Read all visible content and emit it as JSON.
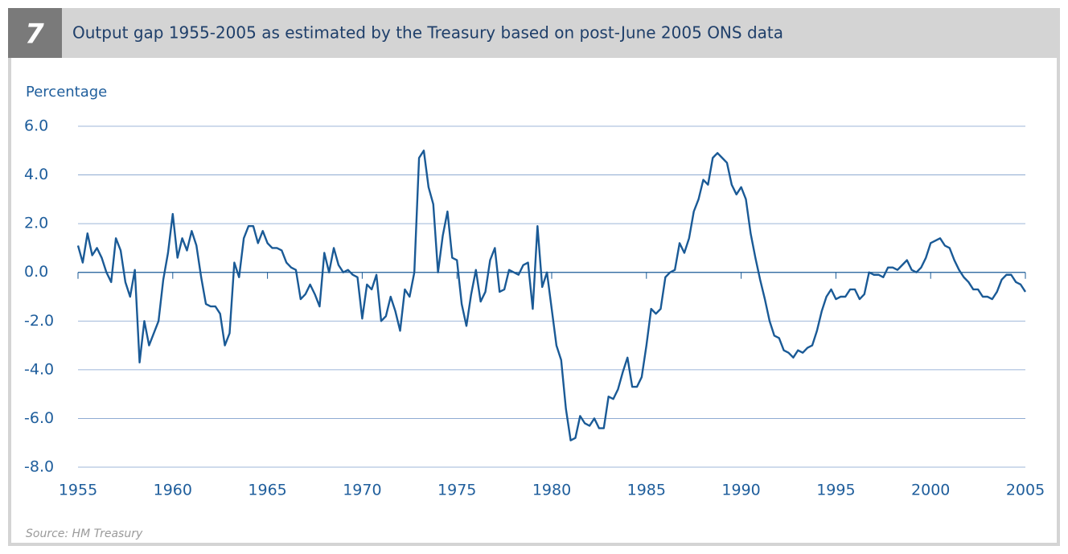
{
  "chart_data": {
    "type": "line",
    "badge": "7",
    "title": "Output gap 1955-2005 as estimated by the Treasury based on post-June 2005 ONS data",
    "y_label": "Percentage",
    "source": "Source: HM Treasury",
    "xlim": [
      1955,
      2005
    ],
    "xticks": [
      1955,
      1960,
      1965,
      1970,
      1975,
      1980,
      1985,
      1990,
      1995,
      2000,
      2005
    ],
    "ylim": [
      -8,
      6
    ],
    "yticks": [
      {
        "value": 6,
        "label": "6.0"
      },
      {
        "value": 4,
        "label": "4.0"
      },
      {
        "value": 2,
        "label": "2.0"
      },
      {
        "value": 0,
        "label": "0.0"
      },
      {
        "value": -2,
        "label": "-2.0"
      },
      {
        "value": -4,
        "label": "-4.0"
      },
      {
        "value": -6,
        "label": "-6.0"
      },
      {
        "value": -8,
        "label": "-8.0"
      }
    ],
    "grid": true,
    "x": [
      1955,
      1955.25,
      1955.5,
      1955.75,
      1956,
      1956.25,
      1956.5,
      1956.75,
      1957,
      1957.25,
      1957.5,
      1957.75,
      1958,
      1958.25,
      1958.5,
      1958.75,
      1959,
      1959.25,
      1959.5,
      1959.75,
      1960,
      1960.25,
      1960.5,
      1960.75,
      1961,
      1961.25,
      1961.5,
      1961.75,
      1962,
      1962.25,
      1962.5,
      1962.75,
      1963,
      1963.25,
      1963.5,
      1963.75,
      1964,
      1964.25,
      1964.5,
      1964.75,
      1965,
      1965.25,
      1965.5,
      1965.75,
      1966,
      1966.25,
      1966.5,
      1966.75,
      1967,
      1967.25,
      1967.5,
      1967.75,
      1968,
      1968.25,
      1968.5,
      1968.75,
      1969,
      1969.25,
      1969.5,
      1969.75,
      1970,
      1970.25,
      1970.5,
      1970.75,
      1971,
      1971.25,
      1971.5,
      1971.75,
      1972,
      1972.25,
      1972.5,
      1972.75,
      1973,
      1973.25,
      1973.5,
      1973.75,
      1974,
      1974.25,
      1974.5,
      1974.75,
      1975,
      1975.25,
      1975.5,
      1975.75,
      1976,
      1976.25,
      1976.5,
      1976.75,
      1977,
      1977.25,
      1977.5,
      1977.75,
      1978,
      1978.25,
      1978.5,
      1978.75,
      1979,
      1979.25,
      1979.5,
      1979.75,
      1980,
      1980.25,
      1980.5,
      1980.75,
      1981,
      1981.25,
      1981.5,
      1981.75,
      1982,
      1982.25,
      1982.5,
      1982.75,
      1983,
      1983.25,
      1983.5,
      1983.75,
      1984,
      1984.25,
      1984.5,
      1984.75,
      1985,
      1985.25,
      1985.5,
      1985.75,
      1986,
      1986.25,
      1986.5,
      1986.75,
      1987,
      1987.25,
      1987.5,
      1987.75,
      1988,
      1988.25,
      1988.5,
      1988.75,
      1989,
      1989.25,
      1989.5,
      1989.75,
      1990,
      1990.25,
      1990.5,
      1990.75,
      1991,
      1991.25,
      1991.5,
      1991.75,
      1992,
      1992.25,
      1992.5,
      1992.75,
      1993,
      1993.25,
      1993.5,
      1993.75,
      1994,
      1994.25,
      1994.5,
      1994.75,
      1995,
      1995.25,
      1995.5,
      1995.75,
      1996,
      1996.25,
      1996.5,
      1996.75,
      1997,
      1997.25,
      1997.5,
      1997.75,
      1998,
      1998.25,
      1998.5,
      1998.75,
      1999,
      1999.25,
      1999.5,
      1999.75,
      2000,
      2000.25,
      2000.5,
      2000.75,
      2001,
      2001.25,
      2001.5,
      2001.75,
      2002,
      2002.25,
      2002.5,
      2002.75,
      2003,
      2003.25,
      2003.5,
      2003.75,
      2004,
      2004.25,
      2004.5,
      2004.75,
      2005
    ],
    "series": [
      {
        "color": "#1a5a96",
        "values": [
          1.1,
          0.4,
          1.6,
          0.7,
          1.0,
          0.6,
          0.0,
          -0.4,
          1.4,
          0.9,
          -0.4,
          -1.0,
          0.1,
          -3.7,
          -2.0,
          -3.0,
          -2.5,
          -2.0,
          -0.3,
          0.8,
          2.4,
          0.6,
          1.4,
          0.9,
          1.7,
          1.1,
          -0.2,
          -1.3,
          -1.4,
          -1.4,
          -1.7,
          -3.0,
          -2.5,
          0.4,
          -0.2,
          1.4,
          1.9,
          1.9,
          1.2,
          1.7,
          1.2,
          1.0,
          1.0,
          0.9,
          0.4,
          0.2,
          0.1,
          -1.1,
          -0.9,
          -0.5,
          -0.9,
          -1.4,
          0.8,
          0.0,
          1.0,
          0.3,
          0.0,
          0.1,
          -0.1,
          -0.2,
          -1.9,
          -0.5,
          -0.7,
          -0.1,
          -2.0,
          -1.8,
          -1.0,
          -1.6,
          -2.4,
          -0.7,
          -1.0,
          0.0,
          4.7,
          5.0,
          3.5,
          2.8,
          0.0,
          1.5,
          2.5,
          0.6,
          0.5,
          -1.3,
          -2.2,
          -0.9,
          0.1,
          -1.2,
          -0.8,
          0.5,
          1.0,
          -0.8,
          -0.7,
          0.1,
          0.0,
          -0.1,
          0.3,
          0.4,
          -1.5,
          1.9,
          -0.6,
          0.0,
          -1.5,
          -3.0,
          -3.6,
          -5.6,
          -6.9,
          -6.8,
          -5.9,
          -6.2,
          -6.3,
          -6.0,
          -6.4,
          -6.4,
          -5.1,
          -5.2,
          -4.8,
          -4.1,
          -3.5,
          -4.7,
          -4.7,
          -4.3,
          -3.0,
          -1.5,
          -1.7,
          -1.5,
          -0.2,
          0.0,
          0.1,
          1.2,
          0.8,
          1.4,
          2.5,
          3.0,
          3.8,
          3.6,
          4.7,
          4.9,
          4.7,
          4.5,
          3.6,
          3.2,
          3.5,
          3.0,
          1.6,
          0.6,
          -0.3,
          -1.1,
          -2.0,
          -2.6,
          -2.7,
          -3.2,
          -3.3,
          -3.5,
          -3.2,
          -3.3,
          -3.1,
          -3.0,
          -2.4,
          -1.6,
          -1.0,
          -0.7,
          -1.1,
          -1.0,
          -1.0,
          -0.7,
          -0.7,
          -1.1,
          -0.9,
          0.0,
          -0.1,
          -0.1,
          -0.2,
          0.2,
          0.2,
          0.1,
          0.3,
          0.5,
          0.1,
          0.0,
          0.2,
          0.6,
          1.2,
          1.3,
          1.4,
          1.1,
          1.0,
          0.5,
          0.1,
          -0.2,
          -0.4,
          -0.7,
          -0.7,
          -1.0,
          -1.0,
          -1.1,
          -0.8,
          -0.3,
          -0.1,
          -0.1,
          -0.4,
          -0.5,
          -0.8
        ]
      }
    ]
  }
}
